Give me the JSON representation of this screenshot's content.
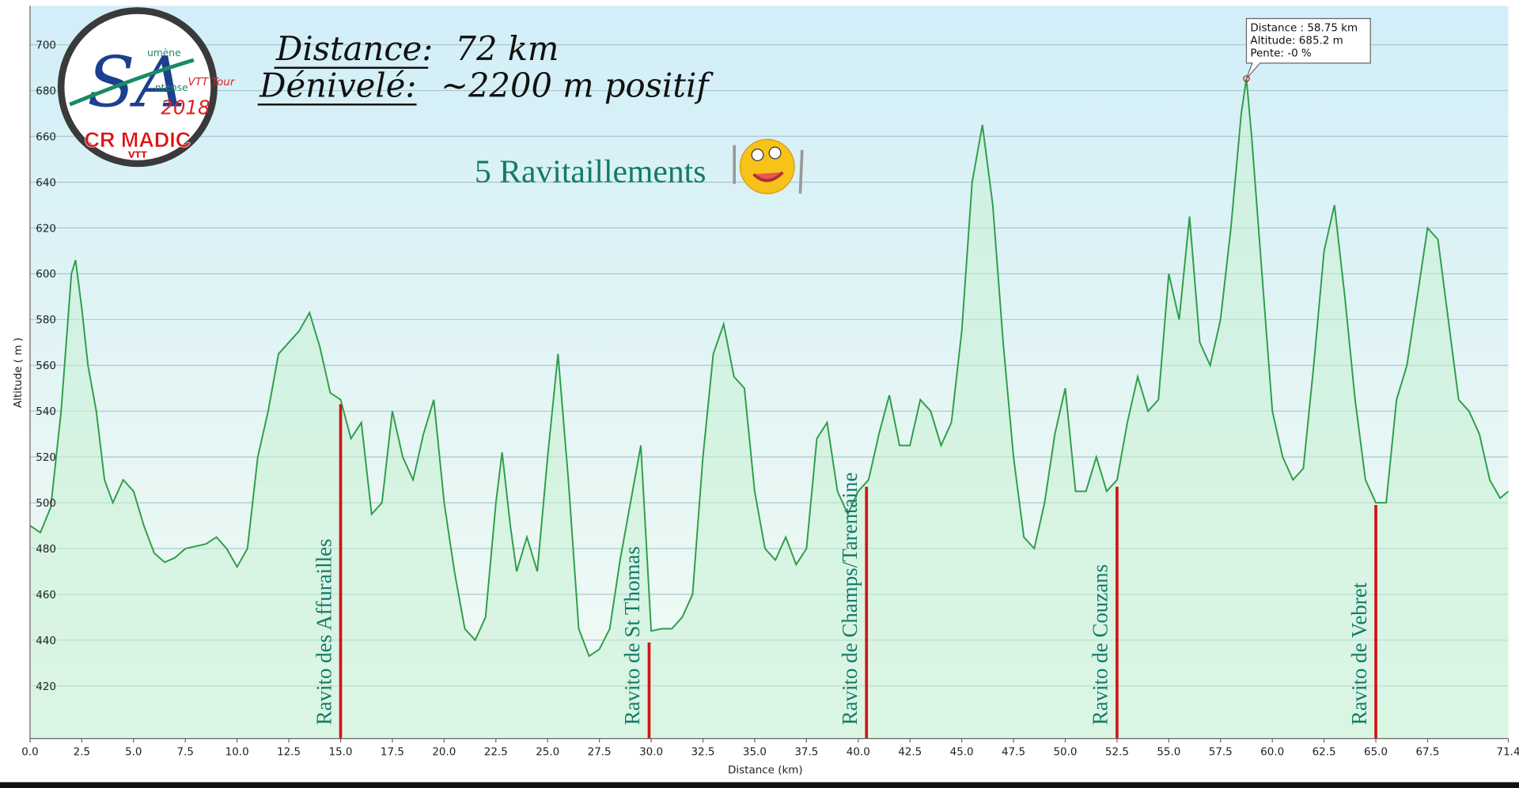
{
  "chart_data": {
    "type": "line",
    "x_label": "Distance   (km)",
    "y_label": "Altitude ( m )",
    "grid": true,
    "xlim": [
      0,
      71.4
    ],
    "ylim": [
      397,
      717
    ],
    "xticks": [
      {
        "value": 0,
        "label": "0.0"
      },
      2.5,
      {
        "value": 5,
        "label": "5.0"
      },
      7.5,
      {
        "value": 10,
        "label": "10.0"
      },
      12.5,
      {
        "value": 15,
        "label": "15.0"
      },
      17.5,
      {
        "value": 20,
        "label": "20.0"
      },
      22.5,
      {
        "value": 25,
        "label": "25.0"
      },
      27.5,
      {
        "value": 30,
        "label": "30.0"
      },
      32.5,
      {
        "value": 35,
        "label": "35.0"
      },
      37.5,
      {
        "value": 40,
        "label": "40.0"
      },
      42.5,
      {
        "value": 45,
        "label": "45.0"
      },
      47.5,
      {
        "value": 50,
        "label": "50.0"
      },
      52.5,
      {
        "value": 55,
        "label": "55.0"
      },
      57.5,
      {
        "value": 60,
        "label": "60.0"
      },
      62.5,
      {
        "value": 65,
        "label": "65.0"
      },
      67.5,
      71.4
    ],
    "yticks": [
      420,
      440,
      460,
      480,
      500,
      520,
      540,
      560,
      580,
      600,
      620,
      640,
      660,
      680,
      700
    ],
    "x": [
      0,
      0.5,
      1,
      1.5,
      2,
      2.2,
      2.5,
      2.8,
      3.2,
      3.6,
      4,
      4.5,
      5,
      5.5,
      6,
      6.5,
      7,
      7.5,
      8.5,
      9,
      9.5,
      10,
      10.5,
      11,
      11.5,
      12,
      12.5,
      13,
      13.5,
      14,
      14.5,
      15,
      15.5,
      16,
      16.5,
      17,
      17.5,
      18,
      18.5,
      19,
      19.5,
      20,
      20.5,
      21,
      21.5,
      22,
      22.5,
      22.8,
      23.2,
      23.5,
      24,
      24.5,
      25,
      25.5,
      26,
      26.5,
      27,
      27.5,
      28,
      28.5,
      29,
      29.5,
      30,
      30.5,
      31,
      31.5,
      32,
      32.5,
      33,
      33.5,
      34,
      34.5,
      35,
      35.5,
      36,
      36.5,
      37,
      37.5,
      38,
      38.5,
      39,
      39.5,
      40,
      40.5,
      41,
      41.5,
      42,
      42.5,
      43,
      43.5,
      44,
      44.5,
      45,
      45.5,
      46,
      46.5,
      47,
      47.5,
      48,
      48.5,
      49,
      49.5,
      50,
      50.5,
      51,
      51.5,
      52,
      52.5,
      53,
      53.5,
      54,
      54.5,
      55,
      55.5,
      56,
      56.5,
      57,
      57.5,
      58,
      58.5,
      58.75,
      59,
      59.5,
      60,
      60.5,
      61,
      61.5,
      62,
      62.5,
      63,
      63.5,
      64,
      64.5,
      65,
      65.5,
      66,
      66.5,
      67,
      67.5,
      68,
      68.5,
      69,
      69.5,
      70,
      70.5,
      71,
      71.4
    ],
    "series": [
      {
        "color": "#2e9e48",
        "values": [
          490,
          487,
          498,
          540,
          600,
          606,
          585,
          560,
          540,
          510,
          500,
          510,
          505,
          490,
          478,
          474,
          476,
          480,
          482,
          485,
          480,
          472,
          480,
          520,
          540,
          565,
          570,
          575,
          583,
          568,
          548,
          545,
          528,
          535,
          495,
          500,
          540,
          520,
          510,
          530,
          545,
          500,
          470,
          445,
          440,
          450,
          500,
          522,
          490,
          470,
          485,
          470,
          520,
          565,
          510,
          445,
          433,
          436,
          445,
          475,
          500,
          525,
          444,
          445,
          445,
          450,
          460,
          520,
          565,
          578,
          555,
          550,
          505,
          480,
          475,
          485,
          473,
          480,
          528,
          535,
          505,
          495,
          505,
          510,
          530,
          547,
          525,
          525,
          545,
          540,
          525,
          535,
          575,
          640,
          665,
          630,
          570,
          520,
          485,
          480,
          500,
          530,
          550,
          505,
          505,
          520,
          505,
          510,
          535,
          555,
          540,
          545,
          600,
          580,
          625,
          570,
          560,
          580,
          620,
          670,
          685.2,
          660,
          600,
          540,
          520,
          510,
          515,
          560,
          610,
          630,
          590,
          545,
          510,
          500,
          500,
          545,
          560,
          590,
          620,
          615,
          580,
          545,
          540,
          530,
          510,
          502,
          505
        ]
      }
    ],
    "ravitos": [
      {
        "label": "Ravito  des Affurailles",
        "distance": 15.0,
        "altitude": 543
      },
      {
        "label": "Ravito  de St Thomas",
        "distance": 29.9,
        "altitude": 439
      },
      {
        "label": "Ravito  de Champs/Tarentaine",
        "distance": 40.4,
        "altitude": 507
      },
      {
        "label": "Ravito  de Couzans",
        "distance": 52.5,
        "altitude": 507
      },
      {
        "label": "Ravito  de Vebret",
        "distance": 65.0,
        "altitude": 499
      }
    ],
    "tooltip": [
      "Distance  : 58.75 km",
      "Altitude: 685.2 m",
      "Pente: -0 %"
    ],
    "annotations": {
      "distance_label": "Distance:",
      "distance_value": "72 km",
      "elevation_label": "Dénivelé:",
      "elevation_value": "~2200 m positif",
      "supplies": "5 Ravitaillements"
    },
    "logo": {
      "initials": "SA",
      "word1": "umène",
      "word2": "ntense",
      "tour": "VTT Tour",
      "year": "2018",
      "club": "CR MADIC",
      "sub": "VTT"
    }
  }
}
